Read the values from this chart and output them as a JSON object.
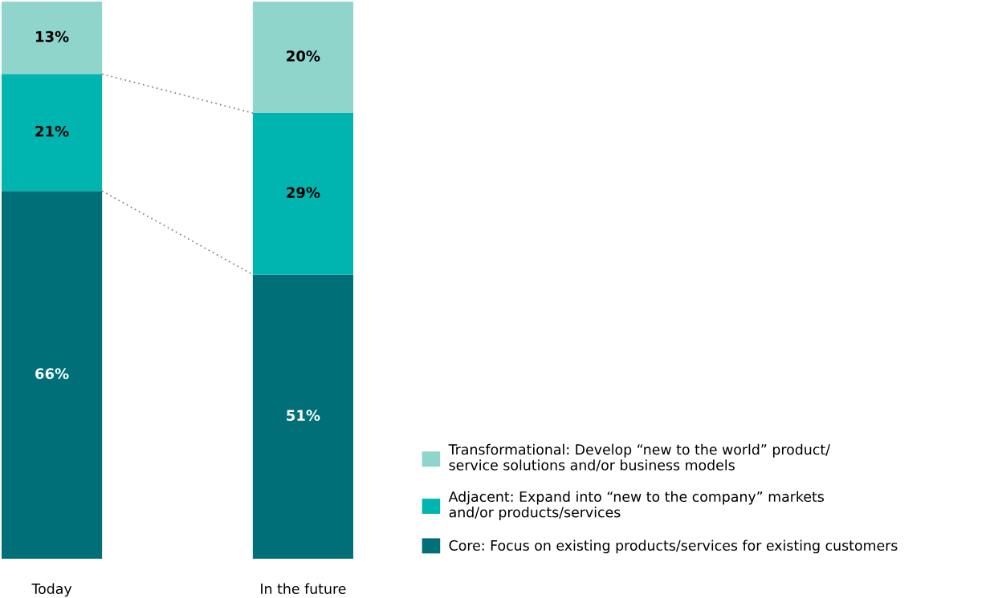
{
  "chart_data": {
    "type": "bar",
    "stacked": true,
    "categories": [
      "Today",
      "In the future"
    ],
    "ylim": [
      0,
      100
    ],
    "tick_labels": "x",
    "legend": "bottom right",
    "grid": false,
    "series": [
      {
        "name": "Core: Focus on existing products/services for existing customers",
        "color": "#006f77",
        "values": [
          66,
          51
        ],
        "value_labels": [
          "66%",
          "51%"
        ]
      },
      {
        "name": "Adjacent: Expand into “new to the company” markets\nand/or products/services",
        "color": "#00b5b0",
        "values": [
          21,
          29
        ],
        "value_labels": [
          "21%",
          "29%"
        ]
      },
      {
        "name": "Transformational: Develop “new to the world” product/\nservice solutions and/or business models",
        "color": "#8fd5cc",
        "values": [
          13,
          20
        ],
        "value_labels": [
          "13%",
          "20%"
        ]
      }
    ]
  }
}
